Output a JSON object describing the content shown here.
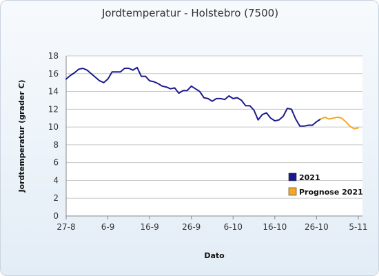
{
  "chart_data": {
    "type": "line",
    "title": "Jordtemperatur - Holstebro (7500)",
    "xlabel": "Dato",
    "ylabel": "Jordtemperatur (grader C)",
    "ylim": [
      0,
      18
    ],
    "yticks": [
      "0",
      "2",
      "4",
      "6",
      "8",
      "10",
      "12",
      "14",
      "16",
      "18"
    ],
    "xticks": [
      "27-8",
      "6-9",
      "16-9",
      "26-9",
      "6-10",
      "16-10",
      "26-10",
      "5-11"
    ],
    "grid": true,
    "legend_position": "bottom-right",
    "series": [
      {
        "name": "2021",
        "color": "#1a1a8c",
        "x": [
          "27-8",
          "28-8",
          "29-8",
          "30-8",
          "31-8",
          "1-9",
          "2-9",
          "3-9",
          "4-9",
          "5-9",
          "6-9",
          "7-9",
          "8-9",
          "9-9",
          "10-9",
          "11-9",
          "12-9",
          "13-9",
          "14-9",
          "15-9",
          "16-9",
          "17-9",
          "18-9",
          "19-9",
          "20-9",
          "21-9",
          "22-9",
          "23-9",
          "24-9",
          "25-9",
          "26-9",
          "27-9",
          "28-9",
          "29-9",
          "30-9",
          "1-10",
          "2-10",
          "3-10",
          "4-10",
          "5-10",
          "6-10",
          "7-10",
          "8-10",
          "9-10",
          "10-10",
          "11-10",
          "12-10",
          "13-10",
          "14-10",
          "15-10",
          "16-10",
          "17-10",
          "18-10",
          "19-10",
          "20-10",
          "21-10",
          "22-10",
          "23-10",
          "24-10",
          "25-10",
          "26-10",
          "27-10"
        ],
        "values": [
          15.4,
          15.8,
          16.1,
          16.5,
          16.6,
          16.4,
          16.0,
          15.6,
          15.2,
          15.0,
          15.4,
          16.2,
          16.2,
          16.2,
          16.6,
          16.6,
          16.4,
          16.7,
          15.7,
          15.7,
          15.2,
          15.1,
          14.9,
          14.6,
          14.5,
          14.3,
          14.4,
          13.8,
          14.1,
          14.1,
          14.6,
          14.3,
          14.0,
          13.3,
          13.2,
          12.9,
          13.2,
          13.2,
          13.1,
          13.5,
          13.2,
          13.3,
          13.0,
          12.4,
          12.4,
          11.9,
          10.8,
          11.4,
          11.6,
          11.0,
          10.7,
          10.8,
          11.2,
          12.1,
          12.0,
          10.9,
          10.1,
          10.1,
          10.2,
          10.2,
          10.6,
          10.9
        ]
      },
      {
        "name": "Prognose 2021",
        "color": "#f5a623",
        "x": [
          "27-10",
          "28-10",
          "29-10",
          "30-10",
          "31-10",
          "1-11",
          "2-11",
          "3-11",
          "4-11",
          "5-11"
        ],
        "values": [
          10.9,
          11.1,
          10.9,
          11.0,
          11.1,
          11.0,
          10.6,
          10.1,
          9.8,
          9.9
        ]
      }
    ]
  }
}
